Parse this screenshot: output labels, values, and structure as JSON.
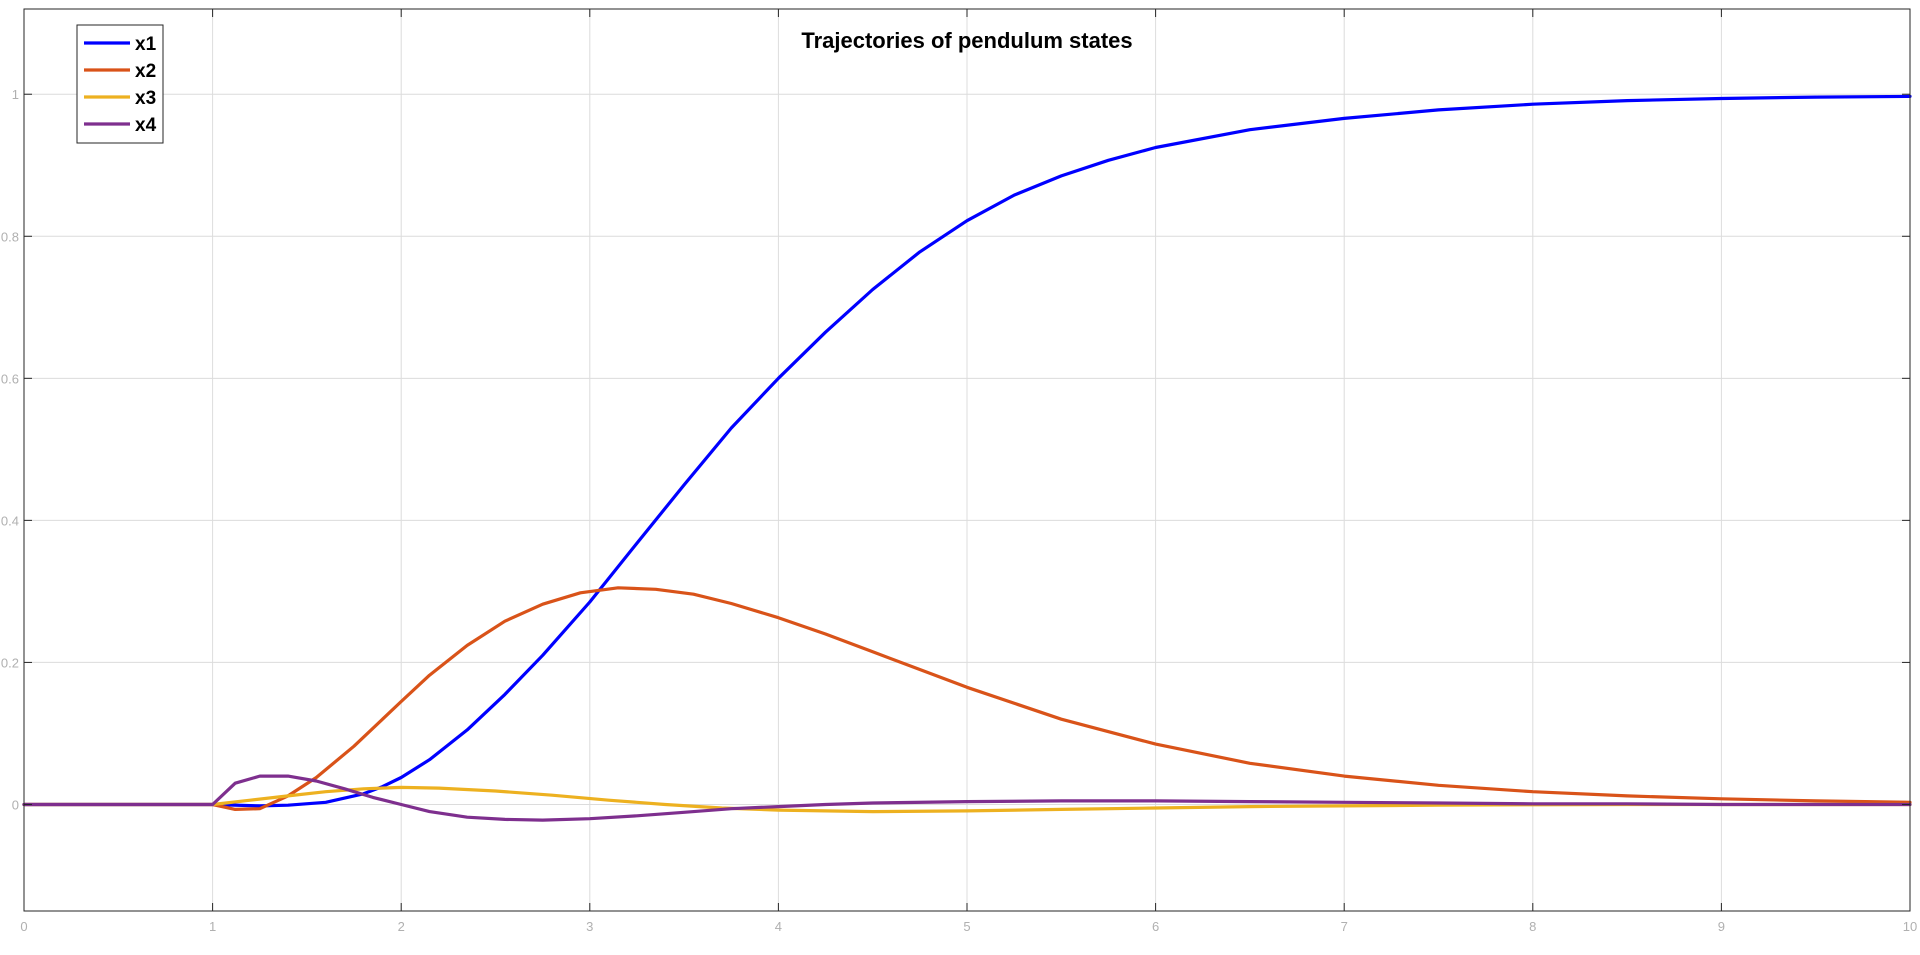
{
  "chart_data": {
    "type": "line",
    "title": "Trajectories of pendulum states",
    "xlabel": "",
    "ylabel": "",
    "xlim": [
      0,
      10
    ],
    "ylim": [
      -0.15,
      1.12
    ],
    "x_ticks": [
      0,
      1,
      2,
      3,
      4,
      5,
      6,
      7,
      8,
      9,
      10
    ],
    "y_ticks": [
      0,
      0.2,
      0.4,
      0.6,
      0.8,
      1
    ],
    "x_tick_labels": [
      "0",
      "1",
      "2",
      "3",
      "4",
      "5",
      "6",
      "7",
      "8",
      "9",
      "10"
    ],
    "y_tick_labels": [
      "0",
      "0.2",
      "0.4",
      "0.6",
      "0.8",
      "1"
    ],
    "grid": true,
    "legend_position": "top-left",
    "series": [
      {
        "name": "x1",
        "color": "#0000ff",
        "x": [
          0,
          1,
          1.25,
          1.4,
          1.6,
          1.8,
          1.9,
          2,
          2.15,
          2.35,
          2.55,
          2.75,
          3,
          3.25,
          3.5,
          3.75,
          4,
          4.25,
          4.5,
          4.75,
          5,
          5.25,
          5.5,
          5.75,
          6,
          6.5,
          7,
          7.5,
          8,
          8.5,
          9,
          9.5,
          10
        ],
        "y": [
          0,
          0,
          -0.002,
          -0.001,
          0.003,
          0.015,
          0.025,
          0.038,
          0.063,
          0.105,
          0.155,
          0.21,
          0.285,
          0.368,
          0.45,
          0.53,
          0.6,
          0.665,
          0.725,
          0.778,
          0.822,
          0.858,
          0.885,
          0.907,
          0.925,
          0.95,
          0.966,
          0.978,
          0.986,
          0.991,
          0.994,
          0.996,
          0.997
        ]
      },
      {
        "name": "x2",
        "color": "#d95319",
        "x": [
          0,
          1,
          1.12,
          1.25,
          1.4,
          1.55,
          1.75,
          2,
          2.15,
          2.35,
          2.55,
          2.75,
          2.95,
          3.15,
          3.35,
          3.55,
          3.75,
          4,
          4.25,
          4.5,
          4.75,
          5,
          5.5,
          6,
          6.5,
          7,
          7.5,
          8,
          8.5,
          9,
          9.5,
          10
        ],
        "y": [
          0,
          0,
          -0.007,
          -0.006,
          0.012,
          0.038,
          0.082,
          0.145,
          0.182,
          0.224,
          0.258,
          0.282,
          0.298,
          0.305,
          0.303,
          0.296,
          0.283,
          0.263,
          0.24,
          0.215,
          0.19,
          0.165,
          0.12,
          0.085,
          0.058,
          0.04,
          0.027,
          0.018,
          0.012,
          0.008,
          0.005,
          0.003
        ]
      },
      {
        "name": "x3",
        "color": "#edb120",
        "x": [
          0,
          1,
          1.2,
          1.4,
          1.6,
          1.8,
          2,
          2.2,
          2.5,
          2.8,
          3.1,
          3.4,
          3.7,
          4,
          4.5,
          5,
          5.5,
          6,
          6.5,
          7,
          7.5,
          8,
          8.5,
          9,
          9.5,
          10
        ],
        "y": [
          0,
          0,
          0.006,
          0.012,
          0.018,
          0.022,
          0.024,
          0.023,
          0.019,
          0.013,
          0.006,
          0.0,
          -0.005,
          -0.008,
          -0.01,
          -0.009,
          -0.007,
          -0.005,
          -0.003,
          -0.002,
          -0.001,
          -0.0005,
          0,
          0,
          0,
          0
        ]
      },
      {
        "name": "x4",
        "color": "#7e2f8e",
        "x": [
          0,
          1,
          1.12,
          1.25,
          1.4,
          1.55,
          1.7,
          1.85,
          2,
          2.15,
          2.35,
          2.55,
          2.75,
          3,
          3.25,
          3.5,
          3.75,
          4,
          4.25,
          4.5,
          5,
          5.5,
          6,
          6.5,
          7,
          7.5,
          8,
          8.5,
          9,
          9.5,
          10
        ],
        "y": [
          0,
          0,
          0.03,
          0.04,
          0.04,
          0.033,
          0.022,
          0.01,
          0.0,
          -0.01,
          -0.018,
          -0.021,
          -0.022,
          -0.02,
          -0.016,
          -0.011,
          -0.006,
          -0.003,
          0.0,
          0.002,
          0.004,
          0.005,
          0.005,
          0.004,
          0.003,
          0.002,
          0.001,
          0.001,
          0,
          0,
          0
        ]
      }
    ]
  }
}
